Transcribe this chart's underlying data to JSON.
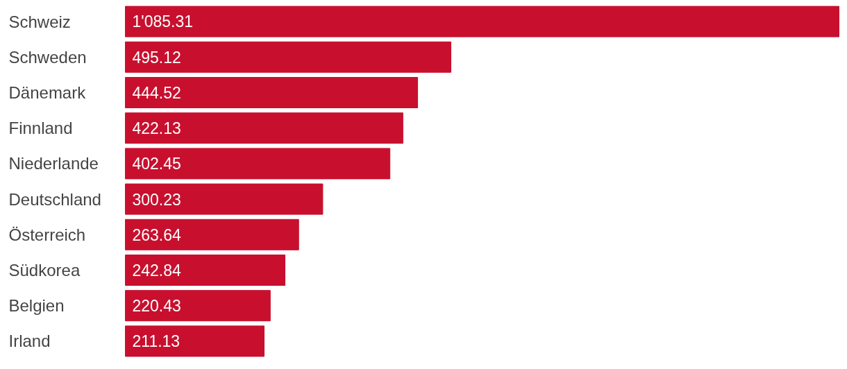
{
  "chart_data": {
    "type": "bar",
    "orientation": "horizontal",
    "color": "#c8102e",
    "categories": [
      "Schweiz",
      "Schweden",
      "Dänemark",
      "Finnland",
      "Niederlande",
      "Deutschland",
      "Österreich",
      "Südkorea",
      "Belgien",
      "Irland"
    ],
    "values": [
      1085.31,
      495.12,
      444.52,
      422.13,
      402.45,
      300.23,
      263.64,
      242.84,
      220.43,
      211.13
    ],
    "value_labels": [
      "1'085.31",
      "495.12",
      "444.52",
      "422.13",
      "402.45",
      "300.23",
      "263.64",
      "242.84",
      "220.43",
      "211.13"
    ],
    "grid": false
  }
}
